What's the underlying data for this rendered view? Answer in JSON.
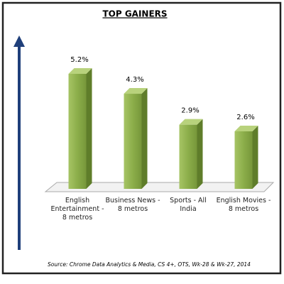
{
  "chart_data": {
    "type": "bar3d",
    "title": "TOP GAINERS",
    "categories": [
      "English Entertainment - 8 metros",
      "Business News - 8 metros",
      "Sports - All India",
      "English Movies - 8 metros"
    ],
    "values": [
      5.2,
      4.3,
      2.9,
      2.6
    ],
    "value_labels": [
      "5.2%",
      "4.3%",
      "2.9%",
      "2.6%"
    ],
    "color": "#8cae4a",
    "source": "Source: Chrome Data Analytics & Media, CS 4+, OTS, Wk-28 & Wk-27, 2014"
  }
}
